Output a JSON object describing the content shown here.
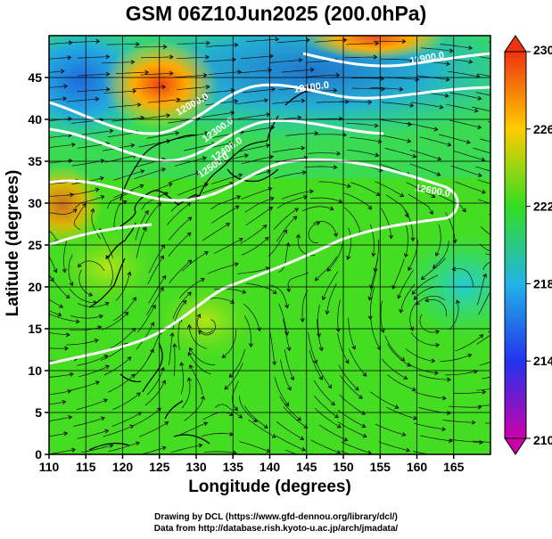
{
  "title": "GSM 06Z10Jun2025 (200.0hPa)",
  "xlabel": "Longitude (degrees)",
  "ylabel": "Latitude  (degrees)",
  "credits": [
    "Drawing by DCL (https://www.gfd-dennou.org/library/dcl/)",
    "Data from http://database.rish.kyoto-u.ac.jp/arch/jmadata/"
  ],
  "chart_data": {
    "type": "heatmap",
    "xlim": [
      110,
      170
    ],
    "ylim": [
      0,
      50
    ],
    "x_ticks": [
      110,
      115,
      120,
      125,
      130,
      135,
      140,
      145,
      150,
      155,
      160,
      165
    ],
    "y_ticks": [
      0,
      5,
      10,
      15,
      20,
      25,
      30,
      35,
      40,
      45
    ],
    "colorbar": {
      "min": 210,
      "max": 230,
      "ticks": [
        210,
        214,
        218,
        222,
        226,
        230
      ],
      "colors": [
        "#cc00aa",
        "#2233ee",
        "#22b4e6",
        "#33dd22",
        "#ffcc00",
        "#ee3311"
      ]
    },
    "contour_labels": [
      "12100.0",
      "11900.0",
      "12000.0",
      "12300.0",
      "12400.0",
      "12500.0",
      "12600.0"
    ],
    "overlays": [
      "streamlines",
      "coastlines",
      "geopotential height contours"
    ],
    "grid": true
  }
}
